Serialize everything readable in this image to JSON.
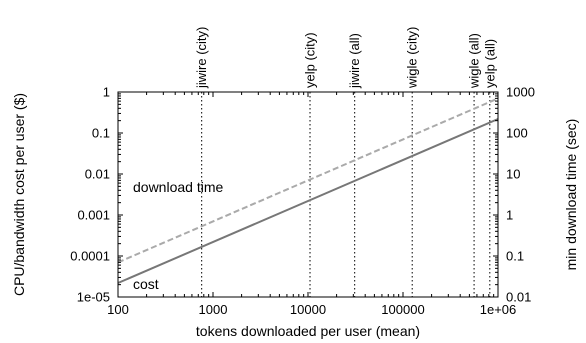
{
  "chart_data": {
    "type": "line",
    "x_scale": "log",
    "y_scale": "log",
    "y2_scale": "log",
    "xlabel": "tokens downloaded per user (mean)",
    "ylabel": "CPU/bandwidth cost per user ($)",
    "y2label": "min download time (sec)",
    "xlim": [
      100,
      1000000
    ],
    "ylim": [
      1e-05,
      1
    ],
    "y2lim": [
      0.01,
      1000
    ],
    "x_ticks": [
      {
        "value": 100,
        "label": "100"
      },
      {
        "value": 1000,
        "label": "1000"
      },
      {
        "value": 10000,
        "label": "10000"
      },
      {
        "value": 100000,
        "label": "100000"
      },
      {
        "value": 1000000,
        "label": "1e+06"
      }
    ],
    "y_ticks": [
      {
        "value": 1e-05,
        "label": "1e-05"
      },
      {
        "value": 0.0001,
        "label": "0.0001"
      },
      {
        "value": 0.001,
        "label": "0.001"
      },
      {
        "value": 0.01,
        "label": "0.01"
      },
      {
        "value": 0.1,
        "label": "0.1"
      },
      {
        "value": 1,
        "label": "1"
      }
    ],
    "y2_ticks": [
      {
        "value": 0.01,
        "label": "0.01"
      },
      {
        "value": 0.1,
        "label": "0.1"
      },
      {
        "value": 1,
        "label": "1"
      },
      {
        "value": 10,
        "label": "10"
      },
      {
        "value": 100,
        "label": "100"
      },
      {
        "value": 1000,
        "label": "1000"
      }
    ],
    "series": [
      {
        "name": "cost",
        "axis": "left",
        "style": "solid",
        "color": "#777777",
        "x": [
          100,
          1000000
        ],
        "y": [
          2.2e-05,
          0.22
        ]
      },
      {
        "name": "download time",
        "axis": "right",
        "style": "dashed",
        "color": "#aaaaaa",
        "x": [
          100,
          1000000
        ],
        "y": [
          0.07,
          700
        ]
      }
    ],
    "vertical_lines": [
      {
        "label": "jiwire (city)",
        "x": 760
      },
      {
        "label": "yelp (city)",
        "x": 10500
      },
      {
        "label": "jiwire (all)",
        "x": 31000
      },
      {
        "label": "wigle (city)",
        "x": 125000
      },
      {
        "label": "wigle (all)",
        "x": 560000
      },
      {
        "label": "yelp (all)",
        "x": 820000
      }
    ],
    "grid": false,
    "legend": "inline labels"
  }
}
